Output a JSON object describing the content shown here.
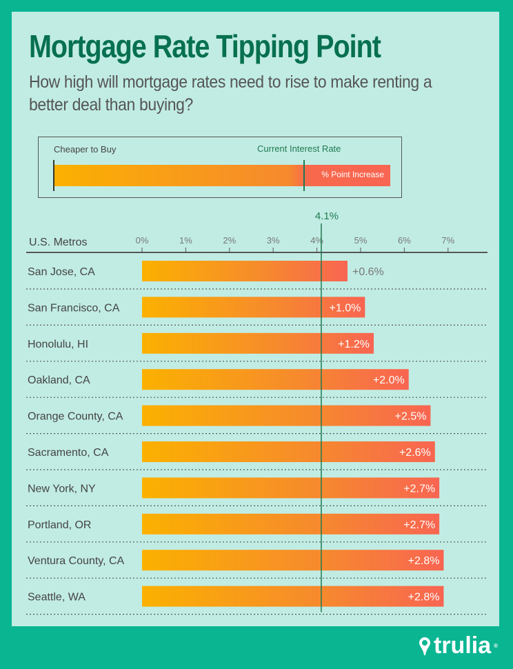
{
  "header": {
    "title": "Mortgage Rate Tipping Point",
    "subtitle": "How high will mortgage rates need to rise to make renting a better deal than buying?"
  },
  "legend": {
    "left_label": "Cheaper to Buy",
    "marker_label": "Current Interest Rate",
    "bar_label": "% Point Increase"
  },
  "brand": {
    "name": "trulia",
    "icon": "map-pin-icon"
  },
  "colors": {
    "background": "#0ab592",
    "panel": "#c1ece3",
    "title": "#07704f",
    "bar_start": "#fbb100",
    "bar_end": "#f86552",
    "marker": "#1f7a52"
  },
  "chart_data": {
    "type": "bar",
    "orientation": "horizontal",
    "category_header": "U.S. Metros",
    "current_rate": 4.1,
    "current_rate_label": "4.1%",
    "xlim": [
      0,
      7
    ],
    "x_ticks": [
      "0%",
      "1%",
      "2%",
      "3%",
      "4%",
      "5%",
      "6%",
      "7%"
    ],
    "categories": [
      "San Jose, CA",
      "San Francisco, CA",
      "Honolulu, HI",
      "Oakland, CA",
      "Orange County, CA",
      "Sacramento, CA",
      "New York, NY",
      "Portland, OR",
      "Ventura County, CA",
      "Seattle, WA"
    ],
    "increase": [
      0.6,
      1.0,
      1.2,
      2.0,
      2.5,
      2.6,
      2.7,
      2.7,
      2.8,
      2.8
    ],
    "labels": [
      "+0.6%",
      "+1.0%",
      "+1.2%",
      "+2.0%",
      "+2.5%",
      "+2.6%",
      "+2.7%",
      "+2.7%",
      "+2.8%",
      "+2.8%"
    ]
  }
}
